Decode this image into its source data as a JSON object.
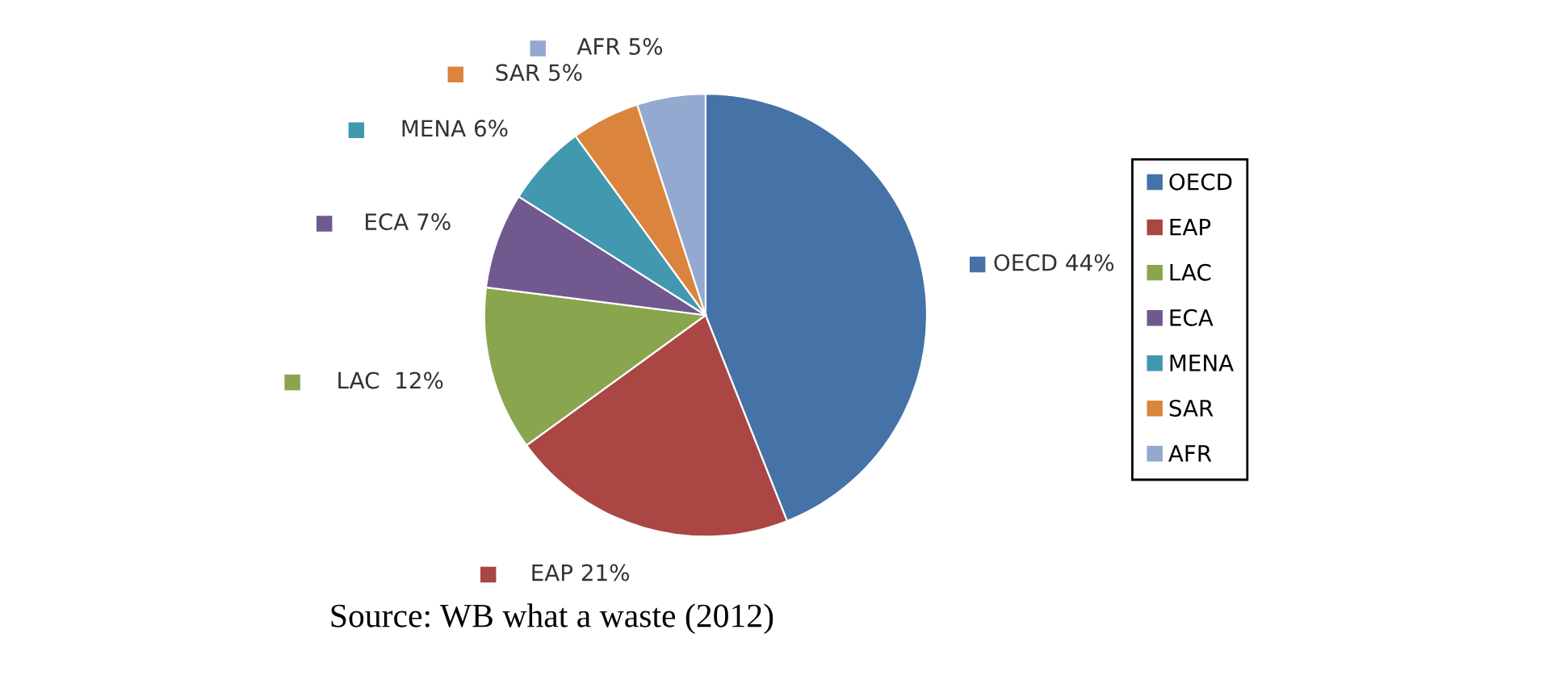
{
  "chart_data": {
    "type": "pie",
    "categories": [
      "OECD",
      "EAP",
      "LAC",
      "ECA",
      "MENA",
      "SAR",
      "AFR"
    ],
    "values": [
      44,
      21,
      12,
      7,
      6,
      5,
      5
    ],
    "colors": [
      "#4572a7",
      "#aa4643",
      "#89a54e",
      "#71588f",
      "#4198af",
      "#db843d",
      "#93a9cf"
    ],
    "value_labels": [
      "OECD 44%",
      "EAP 21%",
      "LAC  12%",
      "ECA 7%",
      "MENA 6%",
      "SAR 5%",
      "AFR 5%"
    ],
    "legend": "right",
    "annotations": [
      "Source: WB what a waste (2012)"
    ]
  }
}
